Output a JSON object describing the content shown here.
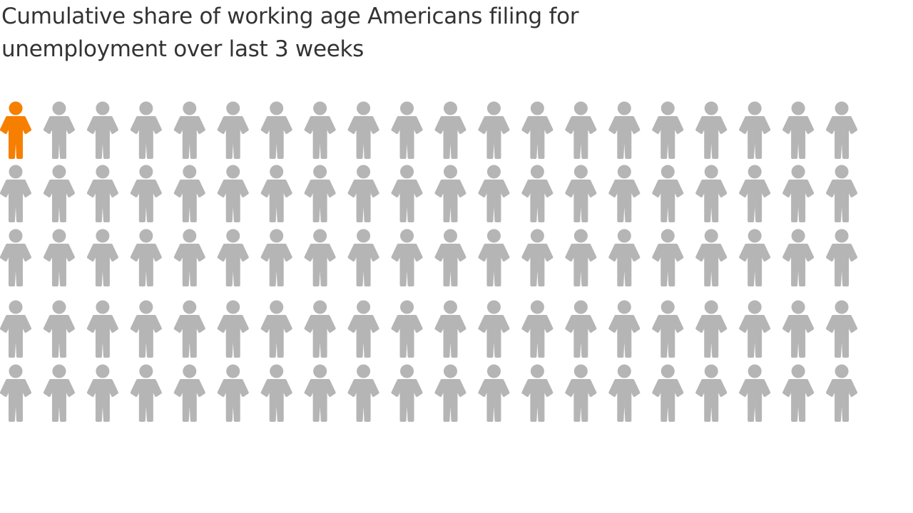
{
  "chart_data": {
    "type": "pictogram",
    "title": "Cumulative share of working age Americans filing for unemployment over last 3 weeks",
    "total_icons": 100,
    "highlighted_icons": 1,
    "rows": 5,
    "columns": 20,
    "icon": "person-icon",
    "colors": {
      "highlight": "#f77f00",
      "base": "#b5b5b5"
    }
  }
}
